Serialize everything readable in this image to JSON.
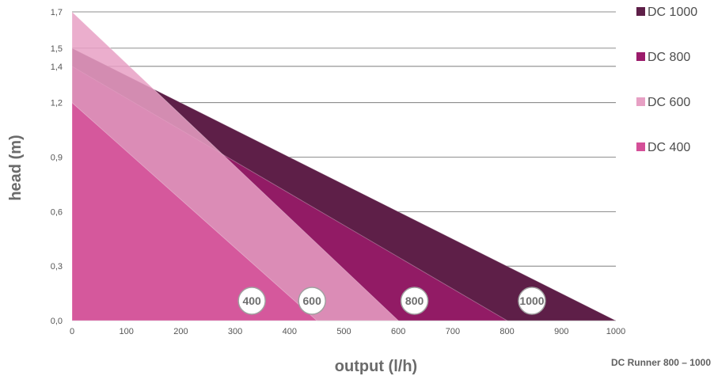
{
  "chart_data": {
    "type": "area",
    "xlabel": "output (l/h)",
    "ylabel": "head (m)",
    "xlim": [
      0,
      1000
    ],
    "ylim": [
      0,
      1.7
    ],
    "x_ticks": [
      "0",
      "100",
      "200",
      "300",
      "400",
      "500",
      "600",
      "700",
      "800",
      "900",
      "1000"
    ],
    "y_ticks": [
      {
        "value": 0.0,
        "label": "0,0"
      },
      {
        "value": 0.3,
        "label": "0,3"
      },
      {
        "value": 0.6,
        "label": "0,6"
      },
      {
        "value": 0.9,
        "label": "0,9"
      },
      {
        "value": 1.2,
        "label": "1,2"
      },
      {
        "value": 1.4,
        "label": "1,4"
      },
      {
        "value": 1.5,
        "label": "1,5"
      },
      {
        "value": 1.7,
        "label": "1,7"
      }
    ],
    "grid": true,
    "legend_position": "right",
    "series": [
      {
        "name": "DC 1000",
        "color": "#5e1f48",
        "x": [
          0,
          1000
        ],
        "y": [
          1.5,
          0
        ],
        "badge": "1000"
      },
      {
        "name": "DC 800",
        "color": "#9b1b6b",
        "x": [
          0,
          800
        ],
        "y": [
          1.4,
          0
        ],
        "badge": "800"
      },
      {
        "name": "DC 600",
        "color": "#e7a0c4",
        "x": [
          0,
          600
        ],
        "y": [
          1.7,
          0
        ],
        "badge": "600"
      },
      {
        "name": "DC 400",
        "color": "#d44f98",
        "x": [
          0,
          450
        ],
        "y": [
          1.2,
          0
        ],
        "badge": "400"
      }
    ]
  },
  "footer": "DC Runner 800 – 1000"
}
